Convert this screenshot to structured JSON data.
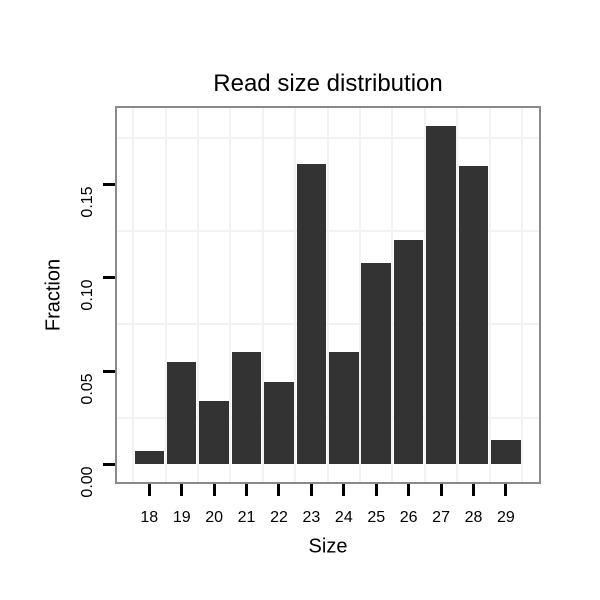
{
  "chart_data": {
    "type": "bar",
    "title": "Read size distribution",
    "xlabel": "Size",
    "ylabel": "Fraction",
    "categories": [
      "18",
      "19",
      "20",
      "21",
      "22",
      "23",
      "24",
      "25",
      "26",
      "27",
      "28",
      "29"
    ],
    "values": [
      0.007,
      0.055,
      0.034,
      0.06,
      0.044,
      0.161,
      0.06,
      0.108,
      0.12,
      0.181,
      0.16,
      0.013
    ],
    "ytick_labels": [
      "0.00",
      "0.05",
      "0.10",
      "0.15"
    ],
    "ytick_values": [
      0,
      0.05,
      0.1,
      0.15
    ],
    "minor_gridline_values": [
      0.025,
      0.075,
      0.125,
      0.175
    ],
    "ylim": [
      -0.009,
      0.191
    ],
    "legend": "none",
    "grid": "minor gridlines only",
    "colors": {
      "bar_fill": "#333333",
      "panel_border": "#8a8a8a",
      "gridline": "#f2f2f2",
      "tick": "#000000",
      "text": "#000000",
      "background": "#ffffff"
    }
  }
}
